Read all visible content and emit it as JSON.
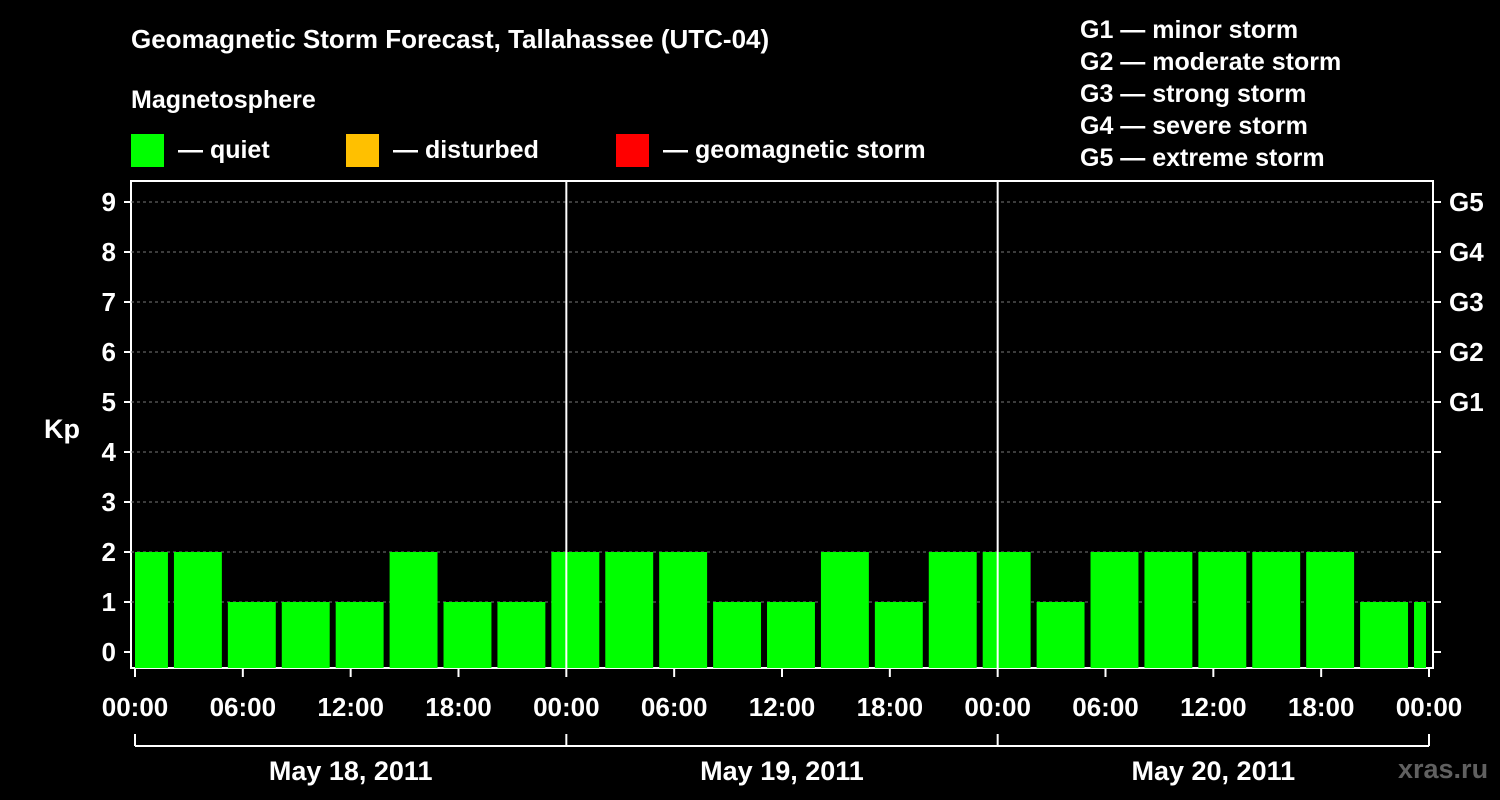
{
  "title": "Geomagnetic Storm Forecast, Tallahassee (UTC-04)",
  "magnetosphere_label": "Magnetosphere",
  "legend": [
    {
      "label": "— quiet",
      "color": "#00ff00"
    },
    {
      "label": "— disturbed",
      "color": "#ffc000"
    },
    {
      "label": "— geomagnetic storm",
      "color": "#ff0000"
    }
  ],
  "g_scale": [
    "G1 — minor storm",
    "G2 — moderate storm",
    "G3 — strong storm",
    "G4 — severe storm",
    "G5 — extreme storm"
  ],
  "watermark": "xras.ru",
  "chart_data": {
    "type": "bar",
    "ylabel": "Kp",
    "ylim": [
      0,
      9
    ],
    "y_ticks": [
      "0",
      "1",
      "2",
      "3",
      "4",
      "5",
      "6",
      "7",
      "8",
      "9"
    ],
    "right_ticks": [
      {
        "kp": 5,
        "label": "G1"
      },
      {
        "kp": 6,
        "label": "G2"
      },
      {
        "kp": 7,
        "label": "G3"
      },
      {
        "kp": 8,
        "label": "G4"
      },
      {
        "kp": 9,
        "label": "G5"
      }
    ],
    "x_ticks": [
      "00:00",
      "06:00",
      "12:00",
      "18:00",
      "00:00",
      "06:00",
      "12:00",
      "18:00",
      "00:00",
      "06:00",
      "12:00",
      "18:00",
      "00:00"
    ],
    "days": [
      "May 18, 2011",
      "May 19, 2011",
      "May 20, 2011"
    ],
    "grid": true,
    "bar_color": "#00ff00",
    "bars": [
      {
        "start_hour": 0,
        "end_hour": 2,
        "kp": 2
      },
      {
        "start_hour": 2,
        "end_hour": 5,
        "kp": 2
      },
      {
        "start_hour": 5,
        "end_hour": 8,
        "kp": 1
      },
      {
        "start_hour": 8,
        "end_hour": 11,
        "kp": 1
      },
      {
        "start_hour": 11,
        "end_hour": 14,
        "kp": 1
      },
      {
        "start_hour": 14,
        "end_hour": 17,
        "kp": 2
      },
      {
        "start_hour": 17,
        "end_hour": 20,
        "kp": 1
      },
      {
        "start_hour": 20,
        "end_hour": 23,
        "kp": 1
      },
      {
        "start_hour": 23,
        "end_hour": 26,
        "kp": 2
      },
      {
        "start_hour": 26,
        "end_hour": 29,
        "kp": 2
      },
      {
        "start_hour": 29,
        "end_hour": 32,
        "kp": 2
      },
      {
        "start_hour": 32,
        "end_hour": 35,
        "kp": 1
      },
      {
        "start_hour": 35,
        "end_hour": 38,
        "kp": 1
      },
      {
        "start_hour": 38,
        "end_hour": 41,
        "kp": 2
      },
      {
        "start_hour": 41,
        "end_hour": 44,
        "kp": 1
      },
      {
        "start_hour": 44,
        "end_hour": 47,
        "kp": 2
      },
      {
        "start_hour": 47,
        "end_hour": 50,
        "kp": 2
      },
      {
        "start_hour": 50,
        "end_hour": 53,
        "kp": 1
      },
      {
        "start_hour": 53,
        "end_hour": 56,
        "kp": 2
      },
      {
        "start_hour": 56,
        "end_hour": 59,
        "kp": 2
      },
      {
        "start_hour": 59,
        "end_hour": 62,
        "kp": 2
      },
      {
        "start_hour": 62,
        "end_hour": 65,
        "kp": 2
      },
      {
        "start_hour": 65,
        "end_hour": 68,
        "kp": 2
      },
      {
        "start_hour": 68,
        "end_hour": 71,
        "kp": 1
      },
      {
        "start_hour": 71,
        "end_hour": 72,
        "kp": 1
      }
    ]
  }
}
